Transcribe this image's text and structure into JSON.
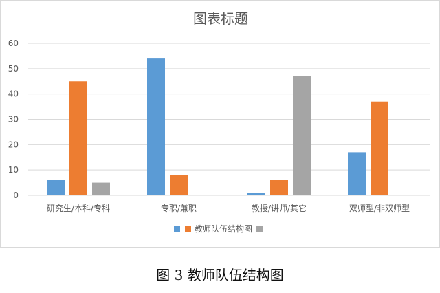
{
  "chart_data": {
    "type": "bar",
    "title": "图表标题",
    "categories": [
      "研究生/本科/专科",
      "专职/兼职",
      "教授/讲师/其它",
      "双师型/非双师型"
    ],
    "series": [
      {
        "color": "#5b9bd5",
        "values": [
          6,
          54,
          1,
          17
        ]
      },
      {
        "name": "教师队伍结构图",
        "color": "#ed7d31",
        "values": [
          45,
          8,
          6,
          37
        ]
      },
      {
        "color": "#a5a5a5",
        "values": [
          5,
          0,
          47,
          0
        ]
      }
    ],
    "yticks": [
      0,
      10,
      20,
      30,
      40,
      50,
      60
    ],
    "ylim": [
      0,
      60
    ],
    "grid": true,
    "legend_position": "bottom"
  },
  "caption": "图 3  教师队伍结构图",
  "colors": {
    "gridline": "#d9d9d9",
    "text": "#595959"
  }
}
